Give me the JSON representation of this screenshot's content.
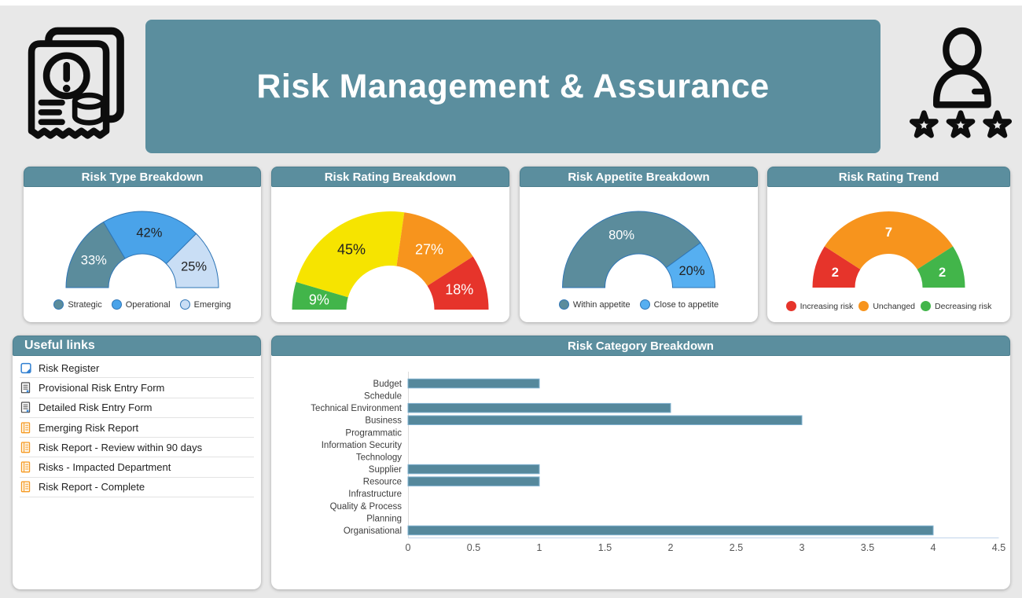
{
  "page": {
    "background": "#e8e8e8"
  },
  "header": {
    "title": "Risk Management & Assurance",
    "banner_color": "#5b8e9e",
    "left_icon": "risk-document-icon",
    "right_icon": "person-rating-stars-icon"
  },
  "gauges": [
    {
      "title": "Risk Type Breakdown",
      "legend": true,
      "segment_stroke": "#2e75b6",
      "segments": [
        {
          "label": "Strategic",
          "value": 33,
          "display": "33%",
          "color": "#5b8c9c",
          "label_color": "#ffffff"
        },
        {
          "label": "Operational",
          "value": 42,
          "display": "42%",
          "color": "#4aa3e9",
          "label_color": "#222222"
        },
        {
          "label": "Emerging",
          "value": 25,
          "display": "25%",
          "color": "#c9def5",
          "label_color": "#222222"
        }
      ]
    },
    {
      "title": "Risk Rating Breakdown",
      "legend": false,
      "segment_stroke": null,
      "segments": [
        {
          "label": "",
          "value": 9,
          "display": "9%",
          "color": "#42b54a",
          "label_color": "#ffffff"
        },
        {
          "label": "",
          "value": 45,
          "display": "45%",
          "color": "#f6e400",
          "label_color": "#222222"
        },
        {
          "label": "",
          "value": 27,
          "display": "27%",
          "color": "#f7941d",
          "label_color": "#ffffff"
        },
        {
          "label": "",
          "value": 18,
          "display": "18%",
          "color": "#e6342b",
          "label_color": "#ffffff"
        }
      ]
    },
    {
      "title": "Risk Appetite Breakdown",
      "legend": true,
      "segment_stroke": "#2e75b6",
      "segments": [
        {
          "label": "Within appetite",
          "value": 80,
          "display": "80%",
          "color": "#5b8c9c",
          "label_color": "#ffffff"
        },
        {
          "label": "Close to appetite",
          "value": 20,
          "display": "20%",
          "color": "#56aff1",
          "label_color": "#222222"
        }
      ]
    },
    {
      "title": "Risk Rating Trend",
      "legend": true,
      "legend_small": true,
      "bold_labels": true,
      "segment_stroke": null,
      "segments": [
        {
          "label": "Increasing risk",
          "value": 2,
          "display": "2",
          "color": "#e6342b",
          "label_color": "#ffffff"
        },
        {
          "label": "Unchanged",
          "value": 7,
          "display": "7",
          "color": "#f7941d",
          "label_color": "#ffffff"
        },
        {
          "label": "Decreasing risk",
          "value": 2,
          "display": "2",
          "color": "#42b54a",
          "label_color": "#ffffff"
        }
      ]
    }
  ],
  "useful_links": {
    "title": "Useful links",
    "items": [
      {
        "label": "Risk Register",
        "icon": "note-icon"
      },
      {
        "label": "Provisional Risk Entry Form",
        "icon": "form-icon"
      },
      {
        "label": "Detailed Risk Entry Form",
        "icon": "form-icon"
      },
      {
        "label": "Emerging Risk Report",
        "icon": "report-icon"
      },
      {
        "label": "Risk Report - Review within 90 days",
        "icon": "report-icon"
      },
      {
        "label": "Risks - Impacted Department",
        "icon": "report-icon"
      },
      {
        "label": "Risk Report - Complete",
        "icon": "report-icon"
      }
    ]
  },
  "chart_data": {
    "type": "bar",
    "orientation": "horizontal",
    "title": "Risk Category Breakdown",
    "categories": [
      "Budget",
      "Schedule",
      "Technical Environment",
      "Business",
      "Programmatic",
      "Information Security",
      "Technology",
      "Supplier",
      "Resource",
      "Infrastructure",
      "Quality & Process",
      "Planning",
      "Organisational"
    ],
    "values": [
      1,
      0,
      2,
      3,
      0,
      0,
      0,
      1,
      1,
      0,
      0,
      0,
      4
    ],
    "xlabel": "",
    "ylabel": "",
    "xlim": [
      0,
      4.5
    ],
    "xticks": [
      0,
      0.5,
      1,
      1.5,
      2,
      2.5,
      3,
      3.5,
      4,
      4.5
    ],
    "bar_color": "#55889c",
    "bar_stroke": "#7fb0cf",
    "grid": false,
    "legend_position": "none"
  }
}
